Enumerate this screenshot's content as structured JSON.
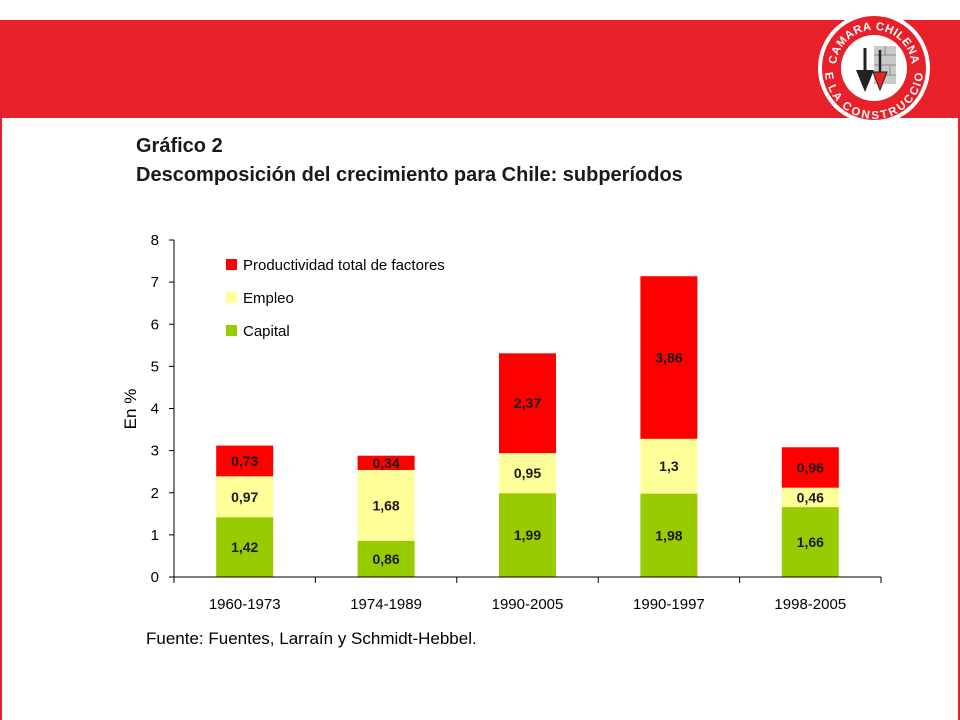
{
  "slide": {
    "title": "Gráfico 2",
    "subtitle": "Descomposición del crecimiento para Chile: subperíodos",
    "logo_text": "CAMARA CHILENA DE LA CONSTRUCCION",
    "logo_icon": "trowel-brick-icon"
  },
  "colors": {
    "band": "#e8202a",
    "tfp": "#ff0000",
    "employment": "#ffff99",
    "capital": "#99cc00"
  },
  "chart_data": {
    "type": "bar",
    "stacked": true,
    "categories": [
      "1960-1973",
      "1974-1989",
      "1990-2005",
      "1990-1997",
      "1998-2005"
    ],
    "series": [
      {
        "name": "Capital",
        "values": [
          1.42,
          0.86,
          1.99,
          1.98,
          1.66
        ],
        "labels": [
          "1,42",
          "0,86",
          "1,99",
          "1,98",
          "1,66"
        ],
        "color": "#99cc00"
      },
      {
        "name": "Empleo",
        "values": [
          0.97,
          1.68,
          0.95,
          1.3,
          0.46
        ],
        "labels": [
          "0,97",
          "1,68",
          "0,95",
          "1,3",
          "0,46"
        ],
        "color": "#ffff99"
      },
      {
        "name": "Productividad total de factores",
        "values": [
          0.73,
          0.34,
          2.37,
          3.86,
          0.96
        ],
        "labels": [
          "0,73",
          "0,34",
          "2,37",
          "3,86",
          "0,96"
        ],
        "color": "#ff0000"
      }
    ],
    "legend_order": [
      "Productividad total de factores",
      "Empleo",
      "Capital"
    ],
    "legend_position": "top-left",
    "ylabel": "En %",
    "ylim": [
      0,
      8
    ],
    "yticks": [
      0,
      1,
      2,
      3,
      4,
      5,
      6,
      7,
      8
    ],
    "grid": false,
    "source": "Fuente: Fuentes, Larraín y Schmidt-Hebbel."
  }
}
